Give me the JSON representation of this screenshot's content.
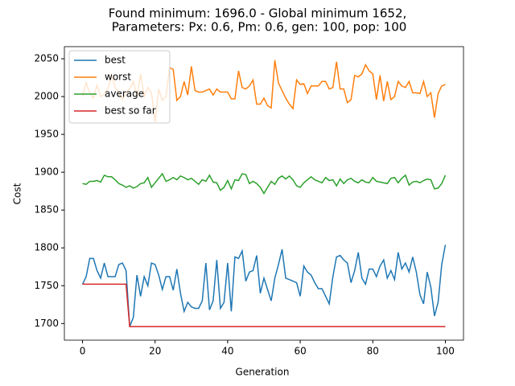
{
  "chart_data": {
    "type": "line",
    "title": [
      "Found minimum: 1696.0 - Global minimum 1652,",
      "Parameters: Px: 0.6, Pm: 0.6, gen: 100, pop: 100"
    ],
    "x_label": "Generation",
    "y_label": "Cost",
    "x": [
      0,
      1,
      2,
      3,
      4,
      5,
      6,
      7,
      8,
      9,
      10,
      11,
      12,
      13,
      14,
      15,
      16,
      17,
      18,
      19,
      20,
      21,
      22,
      23,
      24,
      25,
      26,
      27,
      28,
      29,
      30,
      31,
      32,
      33,
      34,
      35,
      36,
      37,
      38,
      39,
      40,
      41,
      42,
      43,
      44,
      45,
      46,
      47,
      48,
      49,
      50,
      51,
      52,
      53,
      54,
      55,
      56,
      57,
      58,
      59,
      60,
      61,
      62,
      63,
      64,
      65,
      66,
      67,
      68,
      69,
      70,
      71,
      72,
      73,
      74,
      75,
      76,
      77,
      78,
      79,
      80,
      81,
      82,
      83,
      84,
      85,
      86,
      87,
      88,
      89,
      90,
      91,
      92,
      93,
      94,
      95,
      96,
      97,
      98,
      99,
      100
    ],
    "series": [
      {
        "name": "best",
        "color": "#1f77b4",
        "values": [
          1752,
          1762,
          1786,
          1786,
          1770,
          1760,
          1780,
          1762,
          1762,
          1762,
          1778,
          1780,
          1770,
          1696,
          1708,
          1764,
          1736,
          1762,
          1750,
          1780,
          1778,
          1764,
          1745,
          1762,
          1762,
          1744,
          1772,
          1740,
          1716,
          1728,
          1722,
          1720,
          1720,
          1730,
          1780,
          1718,
          1730,
          1784,
          1720,
          1728,
          1780,
          1716,
          1788,
          1786,
          1796,
          1756,
          1768,
          1770,
          1790,
          1740,
          1760,
          1745,
          1730,
          1760,
          1778,
          1798,
          1760,
          1758,
          1756,
          1754,
          1736,
          1776,
          1768,
          1764,
          1754,
          1746,
          1746,
          1736,
          1726,
          1762,
          1788,
          1790,
          1784,
          1780,
          1754,
          1770,
          1794,
          1760,
          1752,
          1772,
          1772,
          1762,
          1776,
          1784,
          1760,
          1770,
          1758,
          1794,
          1772,
          1780,
          1768,
          1788,
          1768,
          1738,
          1726,
          1768,
          1748,
          1710,
          1728,
          1778,
          1804
        ]
      },
      {
        "name": "worst",
        "color": "#ff7f0e",
        "values": [
          2000,
          2018,
          2005,
          1998,
          2015,
          2000,
          2003,
          2010,
          2028,
          2012,
          2005,
          1996,
          2005,
          2010,
          2020,
          2000,
          2030,
          2000,
          2012,
          2005,
          1966,
          2010,
          1995,
          2000,
          2038,
          2036,
          1995,
          2000,
          2020,
          2002,
          2040,
          2008,
          2006,
          2006,
          2008,
          2010,
          2002,
          2010,
          2006,
          2006,
          2006,
          1997,
          1997,
          2034,
          2012,
          2010,
          2014,
          2022,
          1990,
          1990,
          1998,
          1988,
          1985,
          2048,
          2018,
          2008,
          1998,
          1990,
          1984,
          2022,
          2016,
          2017,
          2004,
          2014,
          2014,
          2014,
          2020,
          2020,
          2010,
          2012,
          2046,
          2010,
          2010,
          1992,
          1996,
          2028,
          2026,
          2030,
          2042,
          2034,
          2030,
          1996,
          2028,
          1994,
          2020,
          1996,
          2000,
          2020,
          2014,
          2012,
          2020,
          2005,
          2005,
          2004,
          2020,
          2000,
          2005,
          1972,
          2004,
          2014,
          2016
        ]
      },
      {
        "name": "average",
        "color": "#2ca02c",
        "values": [
          1885,
          1884,
          1888,
          1888,
          1889,
          1887,
          1896,
          1894,
          1894,
          1890,
          1885,
          1883,
          1880,
          1882,
          1879,
          1881,
          1885,
          1886,
          1893,
          1880,
          1886,
          1892,
          1898,
          1888,
          1890,
          1893,
          1890,
          1895,
          1893,
          1890,
          1892,
          1888,
          1884,
          1890,
          1888,
          1896,
          1887,
          1886,
          1876,
          1880,
          1889,
          1878,
          1890,
          1889,
          1898,
          1897,
          1885,
          1888,
          1885,
          1880,
          1872,
          1880,
          1888,
          1884,
          1892,
          1895,
          1891,
          1895,
          1890,
          1882,
          1880,
          1886,
          1890,
          1894,
          1890,
          1888,
          1886,
          1893,
          1889,
          1890,
          1882,
          1891,
          1885,
          1890,
          1892,
          1888,
          1886,
          1890,
          1887,
          1886,
          1893,
          1888,
          1887,
          1886,
          1885,
          1892,
          1893,
          1886,
          1892,
          1896,
          1883,
          1887,
          1888,
          1886,
          1889,
          1891,
          1890,
          1878,
          1879,
          1885,
          1896
        ]
      },
      {
        "name": "best so far",
        "color": "#d62728",
        "values": [
          1752,
          1752,
          1752,
          1752,
          1752,
          1752,
          1752,
          1752,
          1752,
          1752,
          1752,
          1752,
          1752,
          1696,
          1696,
          1696,
          1696,
          1696,
          1696,
          1696,
          1696,
          1696,
          1696,
          1696,
          1696,
          1696,
          1696,
          1696,
          1696,
          1696,
          1696,
          1696,
          1696,
          1696,
          1696,
          1696,
          1696,
          1696,
          1696,
          1696,
          1696,
          1696,
          1696,
          1696,
          1696,
          1696,
          1696,
          1696,
          1696,
          1696,
          1696,
          1696,
          1696,
          1696,
          1696,
          1696,
          1696,
          1696,
          1696,
          1696,
          1696,
          1696,
          1696,
          1696,
          1696,
          1696,
          1696,
          1696,
          1696,
          1696,
          1696,
          1696,
          1696,
          1696,
          1696,
          1696,
          1696,
          1696,
          1696,
          1696,
          1696,
          1696,
          1696,
          1696,
          1696,
          1696,
          1696,
          1696,
          1696,
          1696,
          1696,
          1696,
          1696,
          1696,
          1696,
          1696,
          1696,
          1696,
          1696,
          1696,
          1696
        ]
      }
    ],
    "xlim": [
      -5,
      105
    ],
    "ylim": [
      1678,
      2066
    ],
    "xticks": [
      0,
      20,
      40,
      60,
      80,
      100
    ],
    "yticks": [
      1700,
      1750,
      1800,
      1850,
      1900,
      1950,
      2000,
      2050
    ],
    "legend": "upper left",
    "grid": false
  }
}
